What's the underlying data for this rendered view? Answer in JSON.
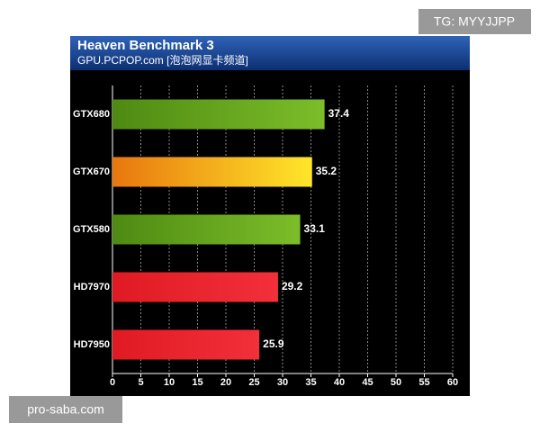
{
  "chart_data": {
    "type": "bar",
    "orientation": "horizontal",
    "title": "Heaven Benchmark 3",
    "subtitle": "GPU.PCPOP.com [泡泡网显卡频道]",
    "categories": [
      "GTX680",
      "GTX670",
      "GTX580",
      "HD7970",
      "HD7950"
    ],
    "values": [
      37.4,
      35.2,
      33.1,
      29.2,
      25.9
    ],
    "colors": [
      [
        "#4e8a12",
        "#7cbd2a"
      ],
      [
        "#e8770e",
        "#ffe62a"
      ],
      [
        "#4e8a12",
        "#7cbd2a"
      ],
      [
        "#e01a22",
        "#f2303a"
      ],
      [
        "#e01a22",
        "#f2303a"
      ]
    ],
    "xlim": [
      0,
      60
    ],
    "xticks": [
      0,
      5,
      10,
      15,
      20,
      25,
      30,
      35,
      40,
      45,
      50,
      55,
      60
    ],
    "grid": true
  },
  "watermarks": [
    "TG: MYYJJPP",
    "pro-saba.com"
  ]
}
